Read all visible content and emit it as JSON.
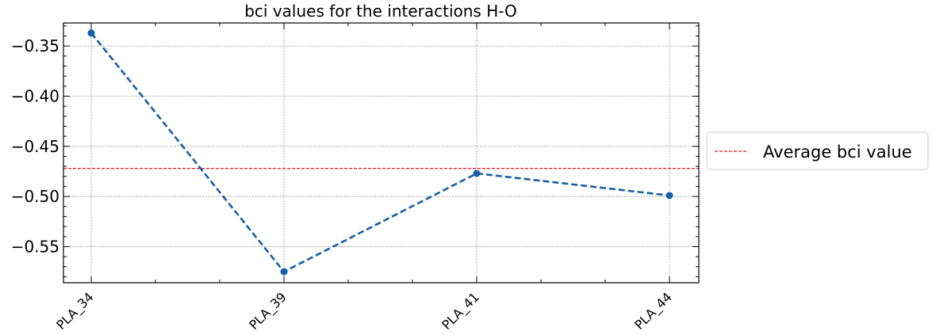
{
  "chart_data": {
    "type": "line",
    "title": "bci values for the interactions H-O",
    "xlabel": "",
    "ylabel": "",
    "categories": [
      "PLA_34",
      "PLA_39",
      "PLA_41",
      "PLA_44"
    ],
    "series": [
      {
        "values": [
          -0.337,
          -0.575,
          -0.477,
          -0.499
        ],
        "color": "#1560a8",
        "style": "dashed",
        "marker": "circle"
      }
    ],
    "average_line": {
      "name": "Average bci value",
      "value": -0.472,
      "color": "#e8141c",
      "style": "dashed"
    },
    "ylim": [
      -0.586,
      -0.327
    ],
    "yticks": [
      -0.35,
      -0.4,
      -0.45,
      -0.5,
      -0.55
    ],
    "ytick_labels": [
      "−0.35",
      "−0.40",
      "−0.45",
      "−0.50",
      "−0.55"
    ],
    "grid": true,
    "legend_position": "right-outside"
  }
}
